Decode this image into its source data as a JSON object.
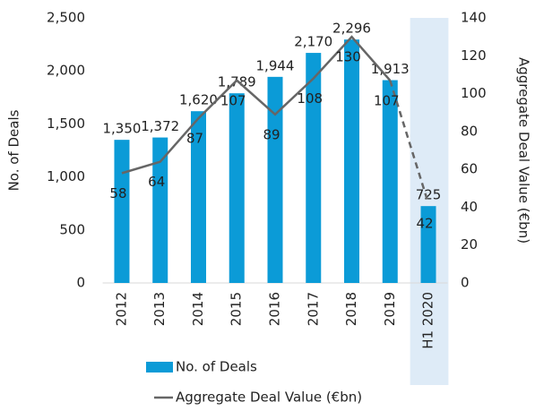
{
  "chart_data": {
    "type": "bar_line",
    "categories": [
      "2012",
      "2013",
      "2014",
      "2015",
      "2016",
      "2017",
      "2018",
      "2019",
      "H1 2020"
    ],
    "series": [
      {
        "name": "No. of Deals",
        "type": "bar",
        "color": "#0b9bd7",
        "values": [
          1350,
          1372,
          1620,
          1789,
          1944,
          2170,
          2296,
          1913,
          725
        ],
        "value_labels": [
          "1,350",
          "1,372",
          "1,620",
          "1,789",
          "1,944",
          "2,170",
          "2,296",
          "1,913",
          "725"
        ]
      },
      {
        "name": "Aggregate Deal Value (€bn)",
        "type": "line",
        "axis": "y2",
        "color": "#666666",
        "values": [
          58,
          64,
          87,
          107,
          89,
          108,
          130,
          107,
          42
        ]
      }
    ],
    "ylabel": "No. of Deals",
    "y2label": "Aggregate Deal Value (€bn)",
    "ylim": [
      0,
      2500
    ],
    "yticks": [
      0,
      500,
      {
        "value": 1000,
        "label": "1,000"
      },
      {
        "value": 1500,
        "label": "1,500"
      },
      {
        "value": 2000,
        "label": "2,000"
      },
      {
        "value": 2500,
        "label": "2,500"
      }
    ],
    "y2lim": [
      0,
      140
    ],
    "y2ticks": [
      0,
      20,
      40,
      60,
      80,
      100,
      120,
      140
    ],
    "legend": "bottom"
  }
}
